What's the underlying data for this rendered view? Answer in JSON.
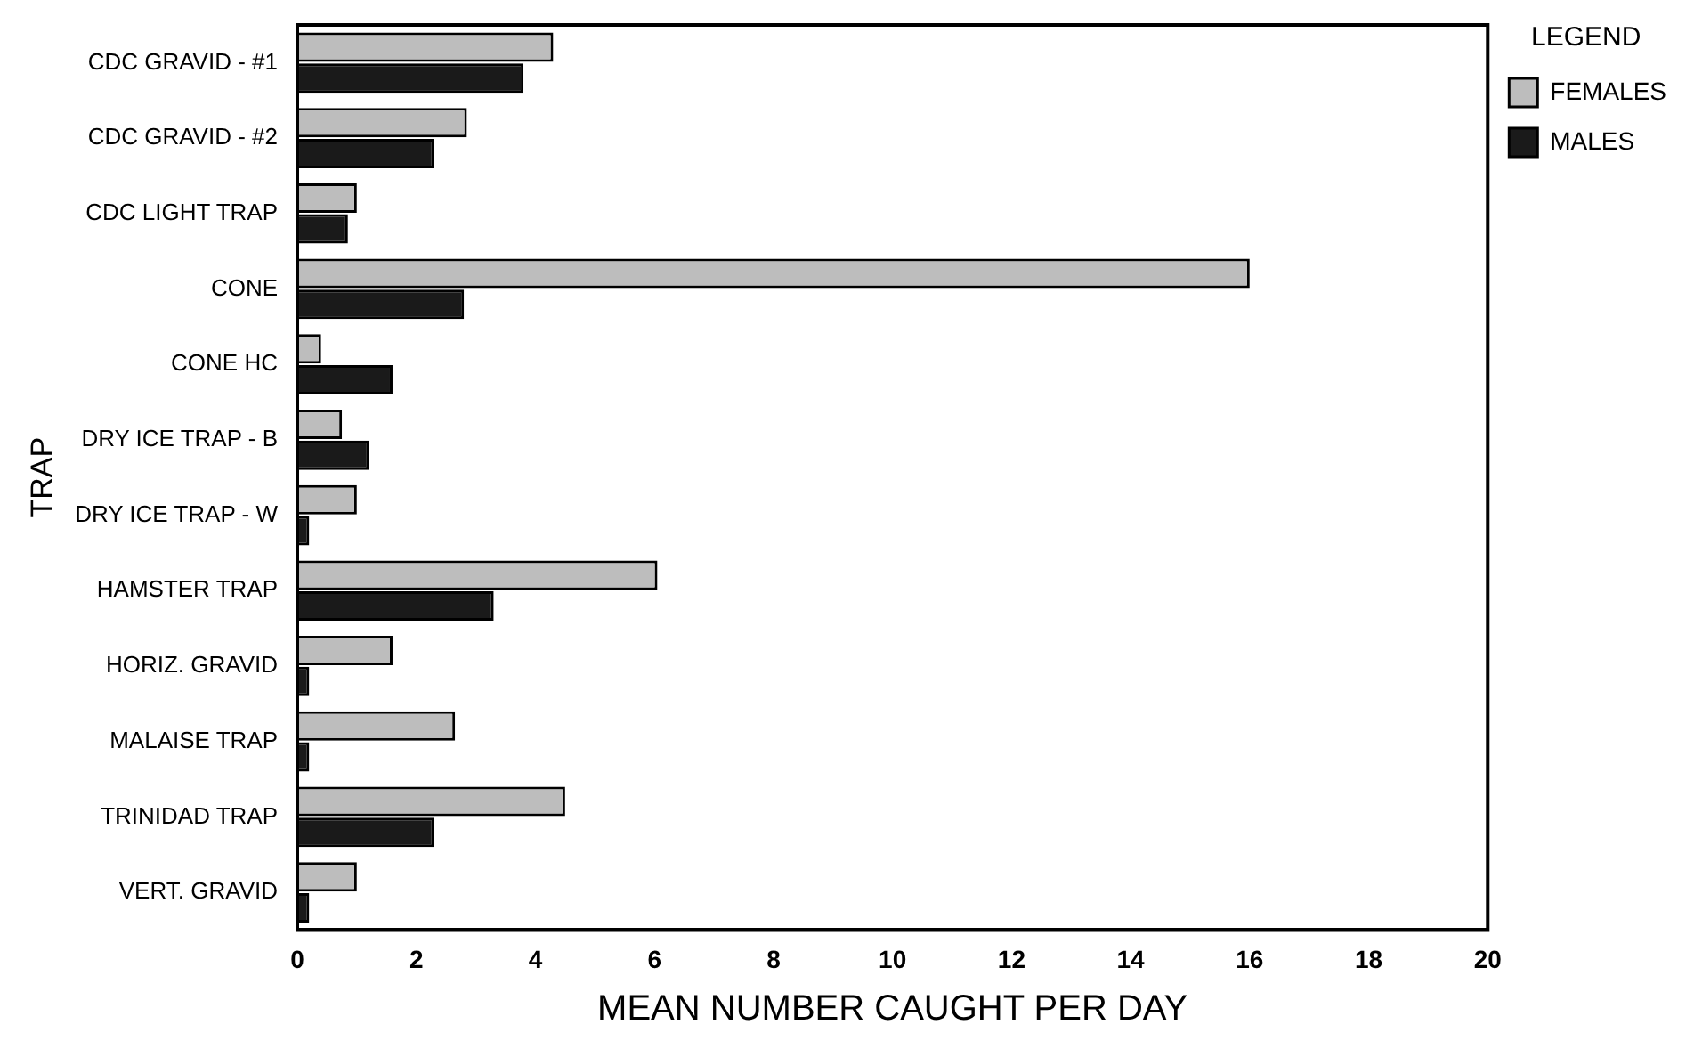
{
  "chart_data": {
    "type": "bar",
    "orientation": "horizontal",
    "categories": [
      "CDC GRAVID - #1",
      "CDC GRAVID - #2",
      "CDC LIGHT TRAP",
      "CONE",
      "CONE HC",
      "DRY ICE TRAP - B",
      "DRY ICE TRAP - W",
      "HAMSTER TRAP",
      "HORIZ. GRAVID",
      "MALAISE TRAP",
      "TRINIDAD TRAP",
      "VERT. GRAVID"
    ],
    "series": [
      {
        "name": "FEMALES",
        "color": "#bdbdbd",
        "values": [
          4.3,
          2.85,
          1.0,
          16.0,
          0.4,
          0.75,
          1.0,
          6.05,
          1.6,
          2.65,
          4.5,
          1.0
        ]
      },
      {
        "name": "MALES",
        "color": "#1a1a1a",
        "values": [
          3.8,
          2.3,
          0.85,
          2.8,
          1.6,
          1.2,
          0.2,
          3.3,
          0.2,
          0.2,
          2.3,
          0.2
        ]
      }
    ],
    "xlabel": "MEAN NUMBER CAUGHT PER DAY",
    "ylabel": "TRAP",
    "legend_title": "LEGEND",
    "xlim": [
      0,
      20
    ],
    "xticks": [
      0,
      2,
      4,
      6,
      8,
      10,
      12,
      14,
      16,
      18,
      20
    ],
    "grid": false,
    "legend": "top right"
  }
}
